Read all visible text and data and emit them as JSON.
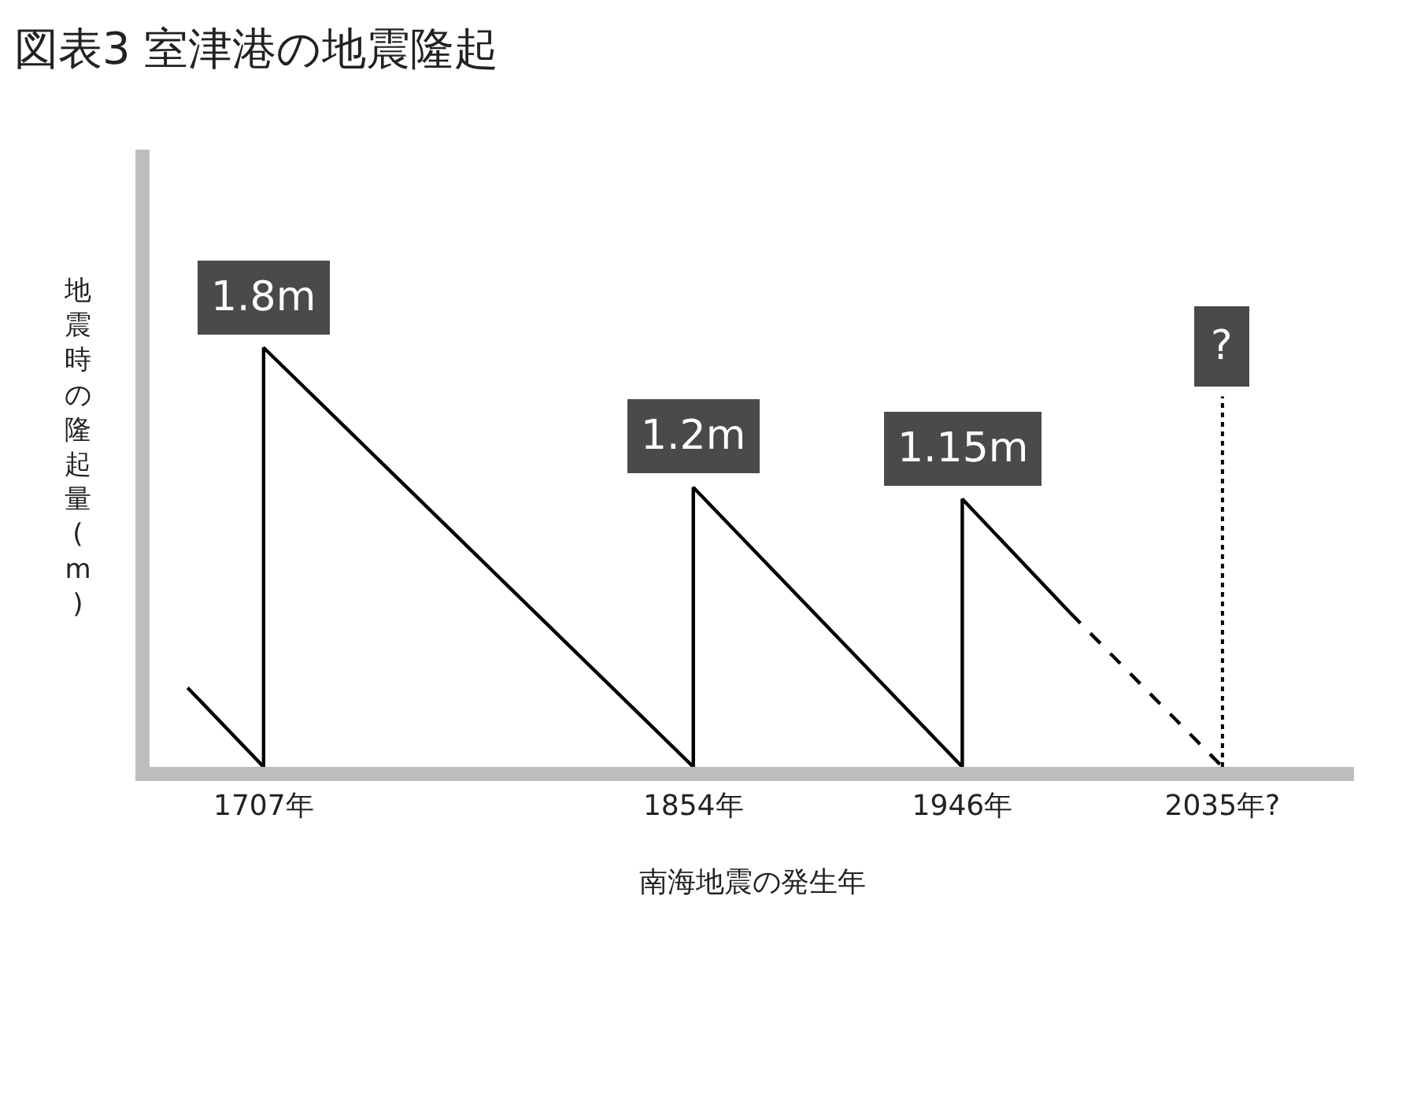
{
  "chart_data": {
    "type": "line",
    "title": "図表3 室津港の地震隆起",
    "xlabel": "南海地震の発生年",
    "ylabel": "地震時の隆起量(m)",
    "xlim": [
      1668,
      2080
    ],
    "ylim": [
      0,
      2.65
    ],
    "xticks": [
      {
        "value": 1707,
        "label": "1707年"
      },
      {
        "value": 1854,
        "label": "1854年"
      },
      {
        "value": 1946,
        "label": "1946年"
      },
      {
        "value": 2035,
        "label": "2035年?"
      }
    ],
    "tick_labels": "x",
    "marker": "none",
    "series": [
      {
        "color": "#000000",
        "line_style": "solid",
        "x": [
          1681,
          1707,
          1707,
          1854,
          1854,
          1946,
          1946,
          1983
        ],
        "values": [
          0.34,
          0,
          1.8,
          0,
          1.2,
          0,
          1.15,
          0.66
        ],
        "value_labels": [
          null,
          null,
          "1.8m",
          null,
          "1.2m",
          null,
          "1.15m",
          null
        ]
      },
      {
        "color": "#000000",
        "line_style": "dashed",
        "x": [
          1983,
          2035
        ],
        "values": [
          0.66,
          0
        ]
      }
    ],
    "ref_lines": [
      {
        "axis": "x",
        "value": 2035,
        "label": "?",
        "line_style": "dotted",
        "color": "#000000"
      }
    ]
  }
}
